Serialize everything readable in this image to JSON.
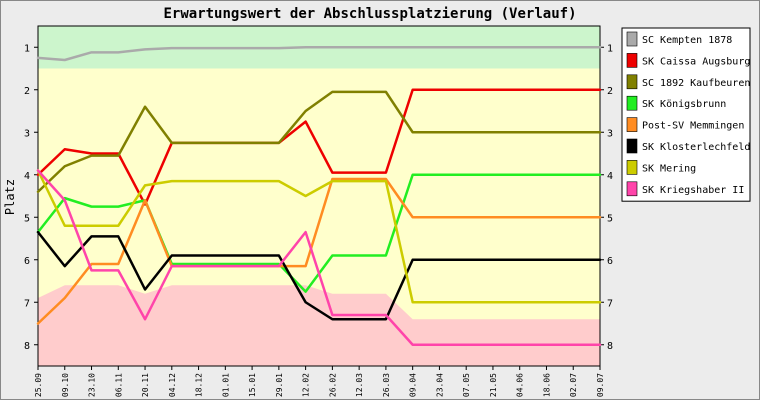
{
  "chart_data": {
    "type": "line",
    "title": "Erwartungswert der Abschlussplatzierung (Verlauf)",
    "ylabel": "Platz",
    "xlabel": "",
    "ylim": [
      0.5,
      8.5
    ],
    "y_inverted": true,
    "y_ticks": [
      1,
      2,
      3,
      4,
      5,
      6,
      7,
      8
    ],
    "y_tick_labels": [
      "1",
      "2",
      "3",
      "4",
      "5",
      "6",
      "7",
      "8"
    ],
    "grid": false,
    "legend_position": "right",
    "categories": [
      "25.09",
      "09.10",
      "23.10",
      "06.11",
      "20.11",
      "04.12",
      "18.12",
      "01.01",
      "15.01",
      "29.01",
      "12.02",
      "26.02",
      "12.03",
      "26.03",
      "09.04",
      "23.04",
      "07.05",
      "21.05",
      "04.06",
      "18.06",
      "02.07",
      "09.07"
    ],
    "zones": [
      {
        "from": 0.5,
        "to": 1.5,
        "color": "#ccf5cc"
      },
      {
        "from": 1.5,
        "to": 8.5,
        "color": "#ffffcc"
      }
    ],
    "series": [
      {
        "name": "SC Kempten 1878",
        "color": "#aaaaaa",
        "values": [
          1.25,
          1.3,
          1.12,
          1.12,
          1.05,
          1.02,
          1.02,
          1.02,
          1.02,
          1.02,
          1.0,
          1.0,
          1.0,
          1.0,
          1.0,
          1.0,
          1.0,
          1.0,
          1.0,
          1.0,
          1.0,
          1.0
        ]
      },
      {
        "name": "SK Caissa Augsburg",
        "color": "#ee0000",
        "values": [
          4.0,
          3.4,
          3.5,
          3.5,
          4.7,
          3.25,
          3.25,
          3.25,
          3.25,
          3.25,
          2.75,
          3.95,
          3.95,
          3.95,
          2.0,
          2.0,
          2.0,
          2.0,
          2.0,
          2.0,
          2.0,
          2.0
        ]
      },
      {
        "name": "SC 1892 Kaufbeuren",
        "color": "#808000",
        "values": [
          4.4,
          3.8,
          3.55,
          3.55,
          2.4,
          3.25,
          3.25,
          3.25,
          3.25,
          3.25,
          2.5,
          2.05,
          2.05,
          2.05,
          3.0,
          3.0,
          3.0,
          3.0,
          3.0,
          3.0,
          3.0,
          3.0
        ]
      },
      {
        "name": "SK Königsbrunn",
        "color": "#22ee22",
        "values": [
          5.35,
          4.55,
          4.75,
          4.75,
          4.6,
          6.1,
          6.1,
          6.1,
          6.1,
          6.1,
          6.75,
          5.9,
          5.9,
          5.9,
          4.0,
          4.0,
          4.0,
          4.0,
          4.0,
          4.0,
          4.0,
          4.0
        ]
      },
      {
        "name": "Post-SV Memmingen",
        "color": "#ff8c22",
        "values": [
          7.5,
          6.9,
          6.1,
          6.1,
          4.6,
          6.15,
          6.15,
          6.15,
          6.15,
          6.15,
          6.15,
          4.1,
          4.1,
          4.1,
          5.0,
          5.0,
          5.0,
          5.0,
          5.0,
          5.0,
          5.0,
          5.0
        ]
      },
      {
        "name": "SK Klosterlechfeld",
        "color": "#000000",
        "values": [
          5.35,
          6.15,
          5.45,
          5.45,
          6.7,
          5.9,
          5.9,
          5.9,
          5.9,
          5.9,
          7.0,
          7.4,
          7.4,
          7.4,
          6.0,
          6.0,
          6.0,
          6.0,
          6.0,
          6.0,
          6.0,
          6.0
        ]
      },
      {
        "name": "SK Mering",
        "color": "#cccc00",
        "values": [
          3.9,
          5.2,
          5.2,
          5.2,
          4.25,
          4.15,
          4.15,
          4.15,
          4.15,
          4.15,
          4.5,
          4.15,
          4.15,
          4.15,
          7.0,
          7.0,
          7.0,
          7.0,
          7.0,
          7.0,
          7.0,
          7.0
        ]
      },
      {
        "name": "SK Kriegshaber II",
        "color": "#ff44aa",
        "values": [
          3.9,
          4.6,
          6.25,
          6.25,
          7.4,
          6.15,
          6.15,
          6.15,
          6.15,
          6.15,
          5.35,
          7.3,
          7.3,
          7.3,
          8.0,
          8.0,
          8.0,
          8.0,
          8.0,
          8.0,
          8.0,
          8.0
        ]
      }
    ]
  }
}
